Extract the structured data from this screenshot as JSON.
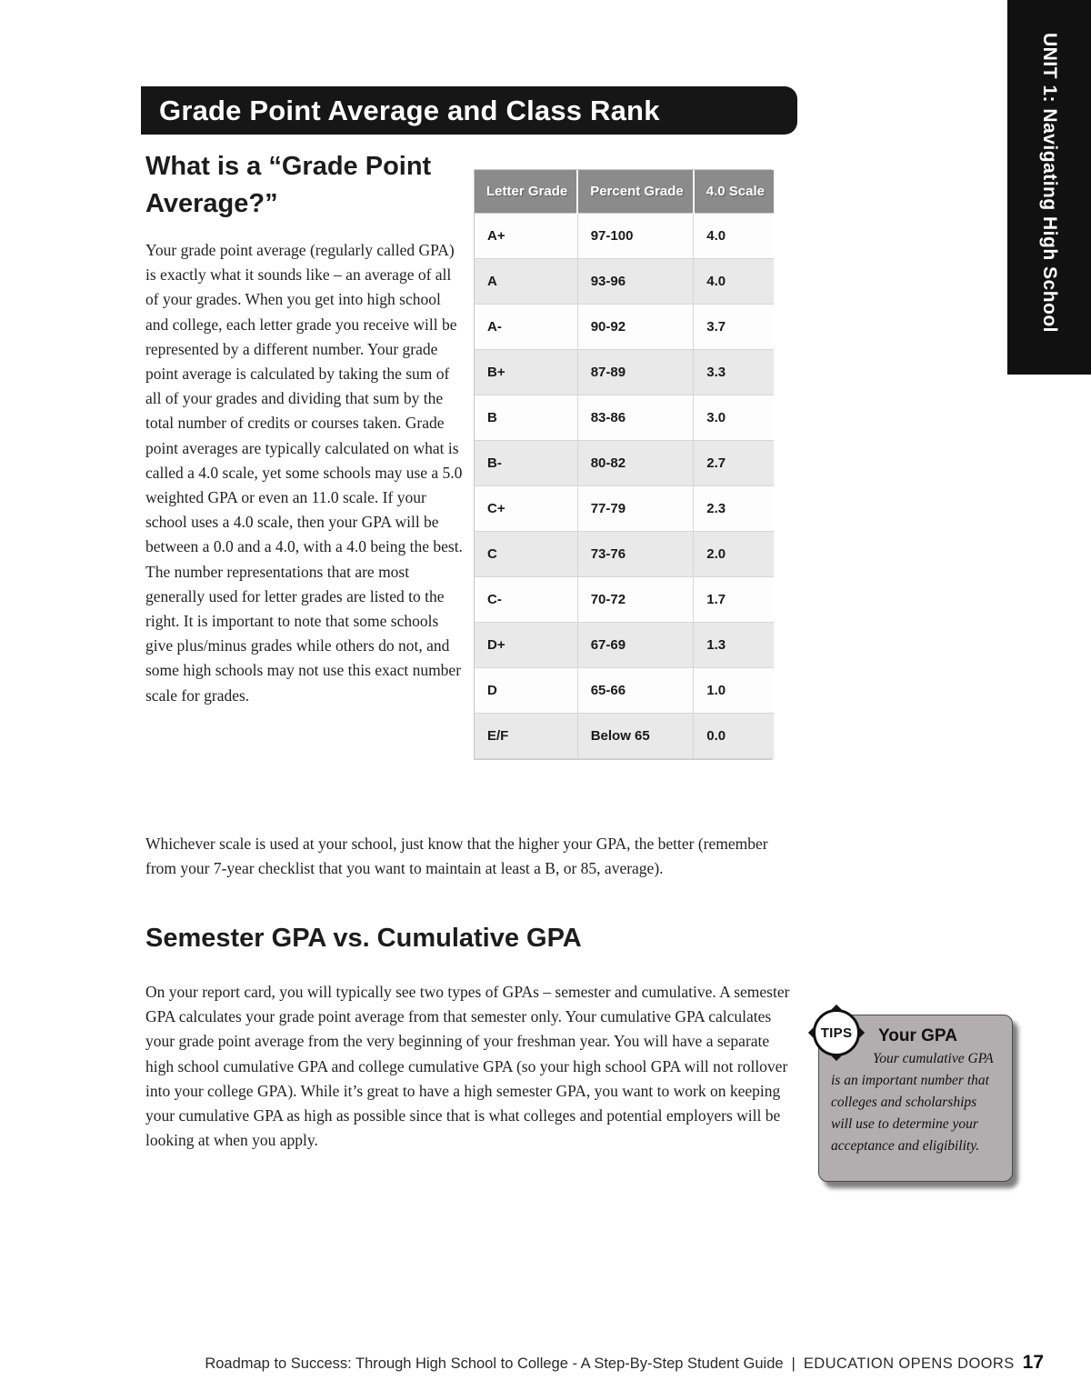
{
  "unit_tab": "UNIT 1: Navigating High School",
  "title_banner": "Grade Point Average and Class Rank",
  "section_what": {
    "heading": "What is a “Grade Point Average?”",
    "body": "Your grade point average (regularly called GPA) is exactly what it sounds like – an average of all of your grades. When you get into high school and college, each letter grade you receive will be represented by a different number. Your grade point average is calculated by taking the sum of all of your grades and dividing that sum by the total number of credits or courses taken. Grade point averages are typically calculated on what is called a 4.0 scale, yet some schools may use a 5.0 weighted GPA or even an 11.0 scale. If your school uses a 4.0 scale, then your GPA will be between a 0.0 and a 4.0, with a 4.0 being the best. The number representations that are most generally used for letter grades are listed to the right. It is important to note that some schools give plus/minus grades while others do not, and some high schools may not use this exact number scale for grades.",
    "after_table": "Whichever scale is used at your school, just know that the higher your GPA, the better (remember from your 7-year checklist that you want to maintain at least a B, or 85, average)."
  },
  "gpa_table": {
    "headers": [
      "Letter Grade",
      "Percent Grade",
      "4.0 Scale"
    ],
    "rows": [
      [
        "A+",
        "97-100",
        "4.0"
      ],
      [
        "A",
        "93-96",
        "4.0"
      ],
      [
        "A-",
        "90-92",
        "3.7"
      ],
      [
        "B+",
        "87-89",
        "3.3"
      ],
      [
        "B",
        "83-86",
        "3.0"
      ],
      [
        "B-",
        "80-82",
        "2.7"
      ],
      [
        "C+",
        "77-79",
        "2.3"
      ],
      [
        "C",
        "73-76",
        "2.0"
      ],
      [
        "C-",
        "70-72",
        "1.7"
      ],
      [
        "D+",
        "67-69",
        "1.3"
      ],
      [
        "D",
        "65-66",
        "1.0"
      ],
      [
        "E/F",
        "Below 65",
        "0.0"
      ]
    ]
  },
  "section_semester": {
    "heading": "Semester GPA vs. Cumulative GPA",
    "body": "On your report card, you will typically see two types of GPAs – semester and cumulative. A semester GPA calculates your grade point average from that semester only. Your cumulative GPA calculates your grade point average from the very beginning of your freshman year. You will have a separate high school cumulative GPA and college cumulative GPA (so your high school GPA will not rollover into your college GPA). While it’s great to have a high semester GPA, you want to work on keeping your cumulative GPA as high as possible since that is what colleges and potential employers will be looking at when you apply."
  },
  "tips_box": {
    "badge": "TIPS",
    "heading": "Your GPA",
    "body": "Your cumulative GPA is an important number that colleges and scholarships will use to determine your acceptance and eligibility."
  },
  "footer": {
    "guide_text": "Roadmap to Success: Through High School to College - A Step-By-Step Student Guide",
    "separator": "|",
    "brand": "EDUCATION OPENS DOORS",
    "page_number": "17"
  },
  "colors": {
    "banner_bg": "#161616",
    "unit_tab_bg": "#111111",
    "table_header_bg": "#8b8b8b",
    "row_alt_bg": "#e9e9e9",
    "tips_bg": "#b2aeb0"
  }
}
